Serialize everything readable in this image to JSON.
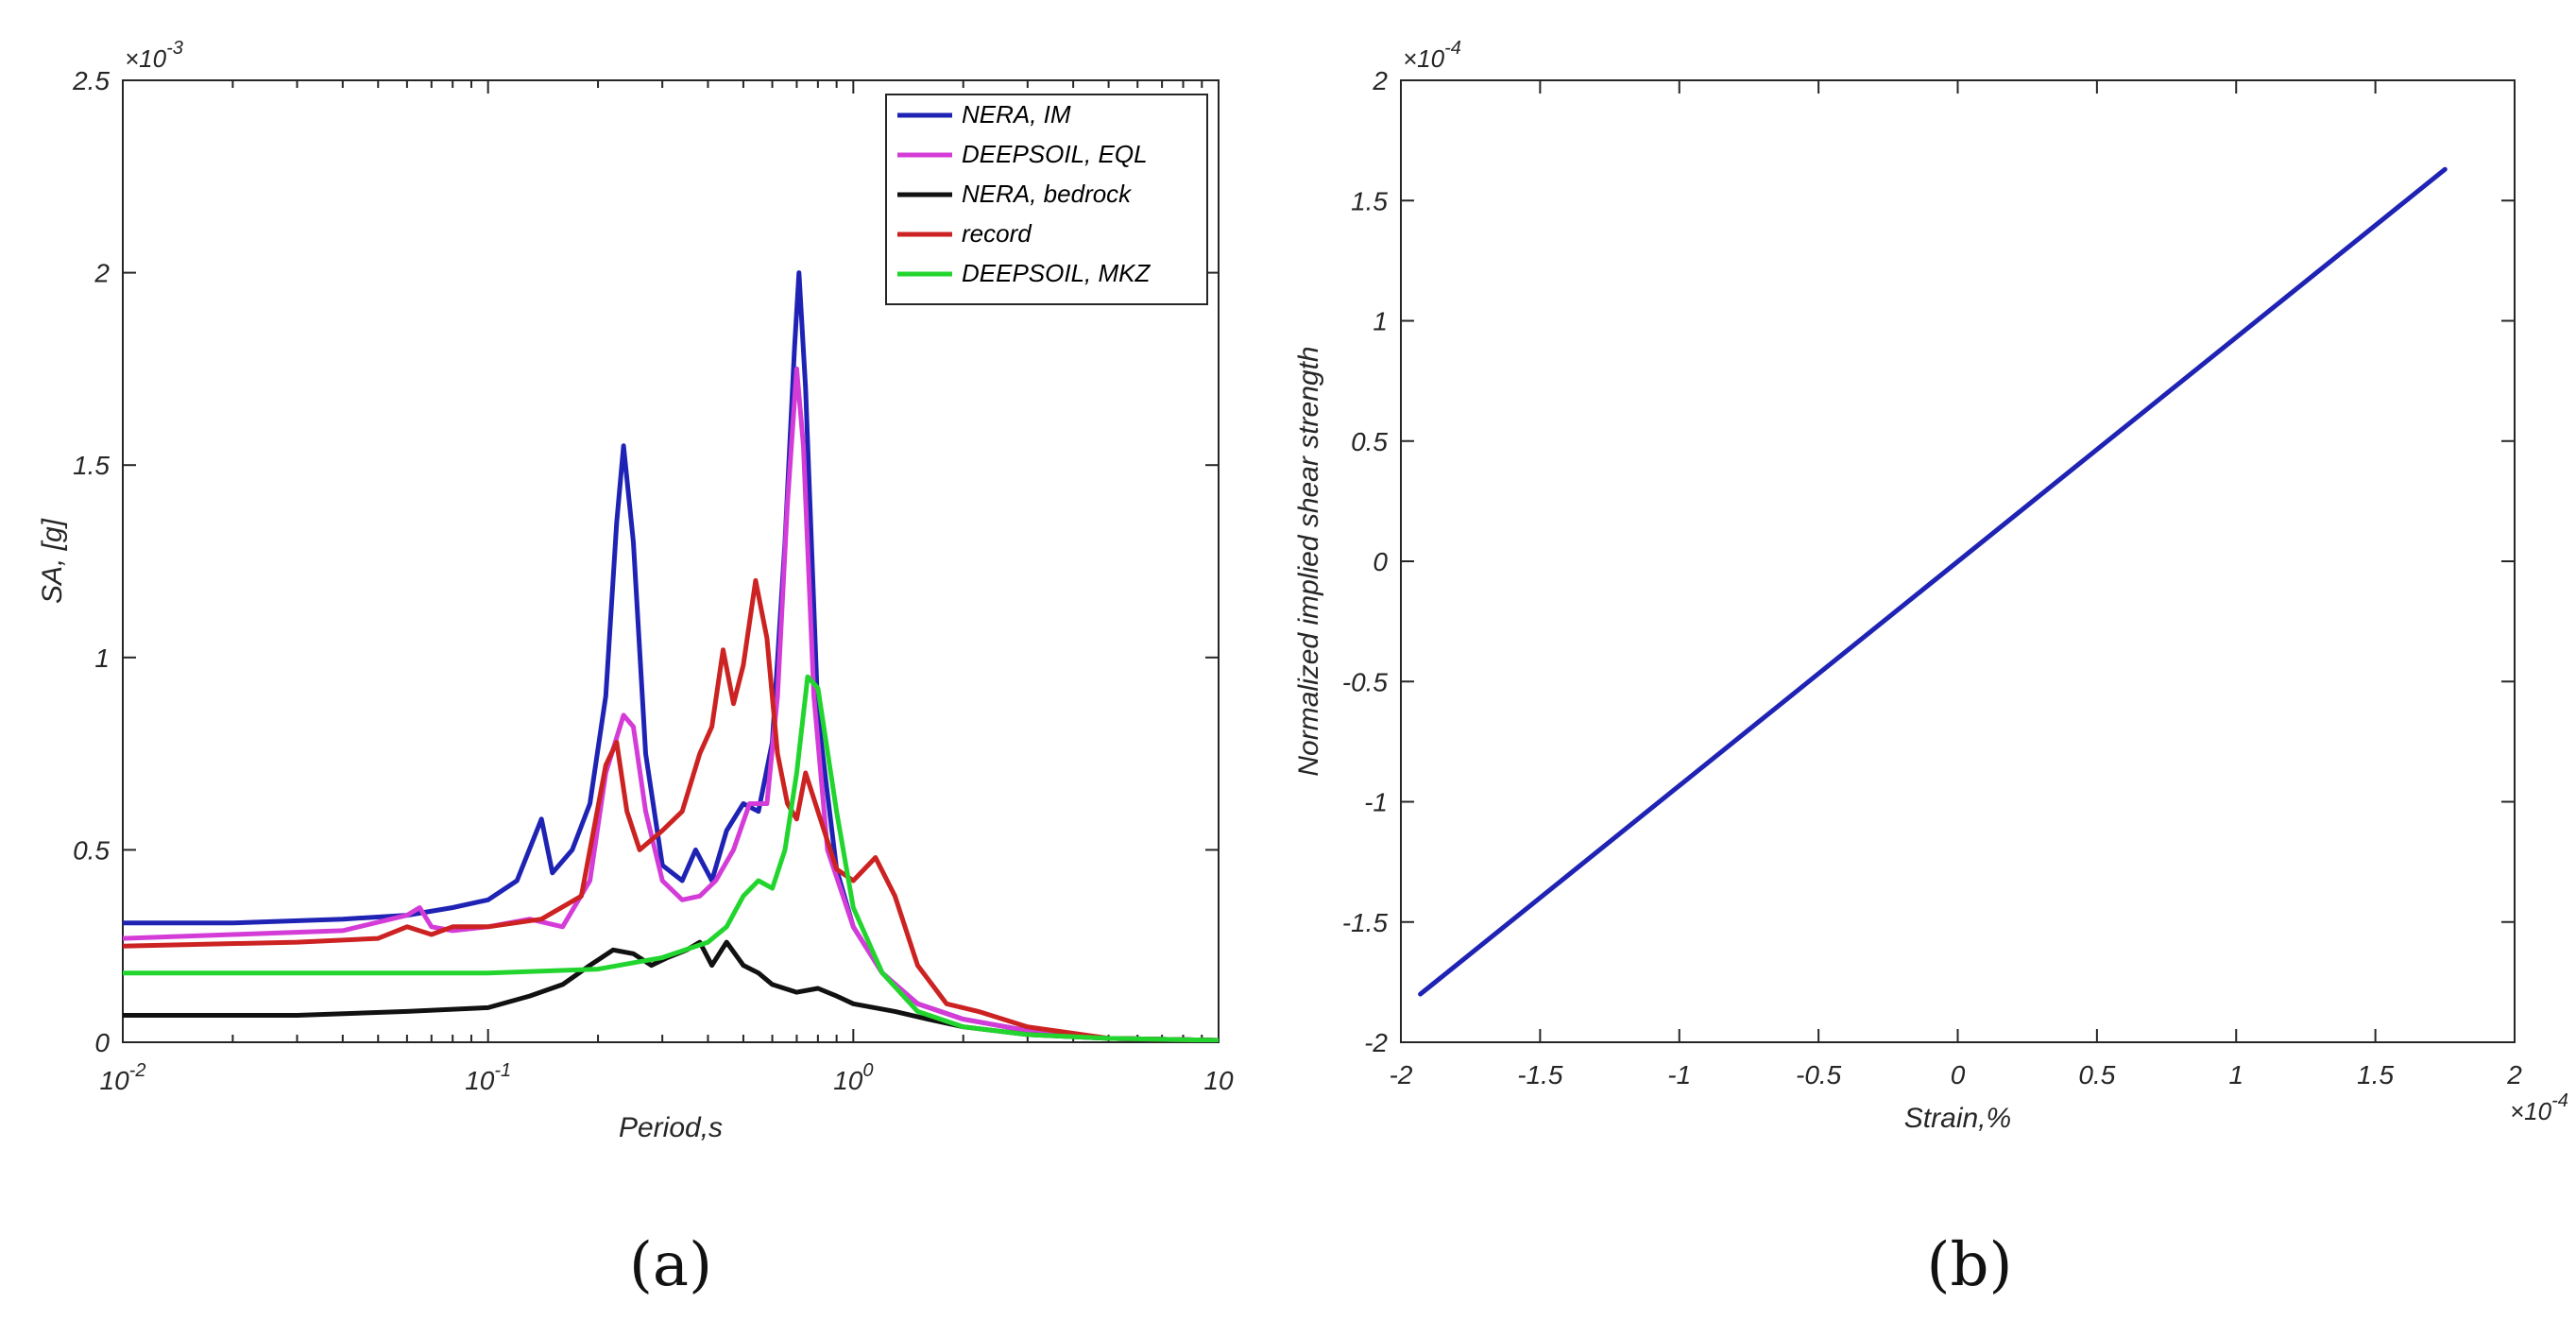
{
  "chart_data": [
    {
      "panel": "(a)",
      "type": "line",
      "xscale": "log",
      "xlabel": "Period,s",
      "ylabel": "SA, [g]",
      "y_multiplier": "×10",
      "y_multiplier_exp": "-3",
      "xlim": [
        0.01,
        10
      ],
      "ylim": [
        0,
        2.5
      ],
      "x_ticks": [
        {
          "value": 0.01,
          "base": "10",
          "exp": "-2"
        },
        {
          "value": 0.1,
          "base": "10",
          "exp": "-1"
        },
        {
          "value": 1,
          "base": "10",
          "exp": "0"
        },
        {
          "value": 10,
          "base": "10",
          "exp": ""
        }
      ],
      "y_ticks": [
        {
          "value": 0,
          "label": "0"
        },
        {
          "value": 0.5,
          "label": "0.5"
        },
        {
          "value": 1,
          "label": "1"
        },
        {
          "value": 1.5,
          "label": "1.5"
        },
        {
          "value": 2,
          "label": "2"
        },
        {
          "value": 2.5,
          "label": "2.5"
        }
      ],
      "legend_position": "top-right",
      "series": [
        {
          "name": "NERA, IM",
          "color": "#1f23b4",
          "points": [
            [
              0.01,
              0.31
            ],
            [
              0.02,
              0.31
            ],
            [
              0.04,
              0.32
            ],
            [
              0.06,
              0.33
            ],
            [
              0.08,
              0.35
            ],
            [
              0.1,
              0.37
            ],
            [
              0.12,
              0.42
            ],
            [
              0.14,
              0.58
            ],
            [
              0.15,
              0.44
            ],
            [
              0.17,
              0.5
            ],
            [
              0.19,
              0.62
            ],
            [
              0.21,
              0.9
            ],
            [
              0.225,
              1.35
            ],
            [
              0.235,
              1.55
            ],
            [
              0.25,
              1.3
            ],
            [
              0.27,
              0.75
            ],
            [
              0.3,
              0.46
            ],
            [
              0.34,
              0.42
            ],
            [
              0.37,
              0.5
            ],
            [
              0.41,
              0.42
            ],
            [
              0.45,
              0.55
            ],
            [
              0.5,
              0.62
            ],
            [
              0.55,
              0.6
            ],
            [
              0.6,
              0.78
            ],
            [
              0.65,
              1.3
            ],
            [
              0.69,
              1.8
            ],
            [
              0.71,
              2.0
            ],
            [
              0.74,
              1.7
            ],
            [
              0.8,
              0.85
            ],
            [
              0.9,
              0.45
            ],
            [
              1.0,
              0.3
            ],
            [
              1.2,
              0.18
            ],
            [
              1.5,
              0.1
            ],
            [
              2.0,
              0.06
            ],
            [
              3.0,
              0.03
            ],
            [
              5.0,
              0.01
            ],
            [
              10,
              0.005
            ]
          ]
        },
        {
          "name": "DEEPSOIL, EQL",
          "color": "#d43cd8",
          "points": [
            [
              0.01,
              0.27
            ],
            [
              0.02,
              0.28
            ],
            [
              0.04,
              0.29
            ],
            [
              0.06,
              0.33
            ],
            [
              0.065,
              0.35
            ],
            [
              0.07,
              0.3
            ],
            [
              0.08,
              0.29
            ],
            [
              0.1,
              0.3
            ],
            [
              0.13,
              0.32
            ],
            [
              0.16,
              0.3
            ],
            [
              0.19,
              0.42
            ],
            [
              0.21,
              0.7
            ],
            [
              0.235,
              0.85
            ],
            [
              0.25,
              0.82
            ],
            [
              0.27,
              0.6
            ],
            [
              0.3,
              0.42
            ],
            [
              0.34,
              0.37
            ],
            [
              0.38,
              0.38
            ],
            [
              0.42,
              0.42
            ],
            [
              0.47,
              0.5
            ],
            [
              0.52,
              0.62
            ],
            [
              0.58,
              0.62
            ],
            [
              0.62,
              0.9
            ],
            [
              0.66,
              1.4
            ],
            [
              0.7,
              1.75
            ],
            [
              0.73,
              1.55
            ],
            [
              0.78,
              0.9
            ],
            [
              0.85,
              0.5
            ],
            [
              1.0,
              0.3
            ],
            [
              1.2,
              0.18
            ],
            [
              1.5,
              0.1
            ],
            [
              2.0,
              0.06
            ],
            [
              3.0,
              0.03
            ],
            [
              5.0,
              0.01
            ],
            [
              10,
              0.005
            ]
          ]
        },
        {
          "name": "NERA, bedrock",
          "color": "#111111",
          "points": [
            [
              0.01,
              0.07
            ],
            [
              0.03,
              0.07
            ],
            [
              0.06,
              0.08
            ],
            [
              0.1,
              0.09
            ],
            [
              0.13,
              0.12
            ],
            [
              0.16,
              0.15
            ],
            [
              0.19,
              0.2
            ],
            [
              0.22,
              0.24
            ],
            [
              0.25,
              0.23
            ],
            [
              0.28,
              0.2
            ],
            [
              0.31,
              0.22
            ],
            [
              0.35,
              0.24
            ],
            [
              0.38,
              0.26
            ],
            [
              0.41,
              0.2
            ],
            [
              0.45,
              0.26
            ],
            [
              0.5,
              0.2
            ],
            [
              0.55,
              0.18
            ],
            [
              0.6,
              0.15
            ],
            [
              0.7,
              0.13
            ],
            [
              0.8,
              0.14
            ],
            [
              0.9,
              0.12
            ],
            [
              1.0,
              0.1
            ],
            [
              1.3,
              0.08
            ],
            [
              1.6,
              0.06
            ],
            [
              2.0,
              0.04
            ],
            [
              3.0,
              0.02
            ],
            [
              5.0,
              0.01
            ],
            [
              10,
              0.005
            ]
          ]
        },
        {
          "name": "record",
          "color": "#cc2222",
          "points": [
            [
              0.01,
              0.25
            ],
            [
              0.03,
              0.26
            ],
            [
              0.05,
              0.27
            ],
            [
              0.06,
              0.3
            ],
            [
              0.07,
              0.28
            ],
            [
              0.08,
              0.3
            ],
            [
              0.1,
              0.3
            ],
            [
              0.14,
              0.32
            ],
            [
              0.18,
              0.38
            ],
            [
              0.21,
              0.72
            ],
            [
              0.225,
              0.78
            ],
            [
              0.24,
              0.6
            ],
            [
              0.26,
              0.5
            ],
            [
              0.3,
              0.55
            ],
            [
              0.34,
              0.6
            ],
            [
              0.38,
              0.75
            ],
            [
              0.41,
              0.82
            ],
            [
              0.44,
              1.02
            ],
            [
              0.47,
              0.88
            ],
            [
              0.5,
              0.98
            ],
            [
              0.54,
              1.2
            ],
            [
              0.58,
              1.05
            ],
            [
              0.62,
              0.75
            ],
            [
              0.66,
              0.62
            ],
            [
              0.7,
              0.58
            ],
            [
              0.74,
              0.7
            ],
            [
              0.8,
              0.6
            ],
            [
              0.9,
              0.45
            ],
            [
              1.0,
              0.42
            ],
            [
              1.15,
              0.48
            ],
            [
              1.3,
              0.38
            ],
            [
              1.5,
              0.2
            ],
            [
              1.8,
              0.1
            ],
            [
              2.2,
              0.08
            ],
            [
              3.0,
              0.04
            ],
            [
              5.0,
              0.01
            ],
            [
              10,
              0.005
            ]
          ]
        },
        {
          "name": "DEEPSOIL, MKZ",
          "color": "#22d52e",
          "points": [
            [
              0.01,
              0.18
            ],
            [
              0.05,
              0.18
            ],
            [
              0.1,
              0.18
            ],
            [
              0.2,
              0.19
            ],
            [
              0.3,
              0.22
            ],
            [
              0.4,
              0.26
            ],
            [
              0.45,
              0.3
            ],
            [
              0.5,
              0.38
            ],
            [
              0.55,
              0.42
            ],
            [
              0.6,
              0.4
            ],
            [
              0.65,
              0.5
            ],
            [
              0.7,
              0.7
            ],
            [
              0.75,
              0.95
            ],
            [
              0.8,
              0.92
            ],
            [
              0.9,
              0.6
            ],
            [
              1.0,
              0.35
            ],
            [
              1.2,
              0.18
            ],
            [
              1.5,
              0.08
            ],
            [
              2.0,
              0.04
            ],
            [
              3.0,
              0.02
            ],
            [
              5.0,
              0.01
            ],
            [
              10,
              0.005
            ]
          ]
        }
      ]
    },
    {
      "panel": "(b)",
      "type": "line",
      "xscale": "linear",
      "xlabel": "Strain,%",
      "ylabel": "Normalized implied shear strength",
      "x_multiplier": "×10",
      "x_multiplier_exp": "-4",
      "y_multiplier": "×10",
      "y_multiplier_exp": "-4",
      "xlim": [
        -2,
        2
      ],
      "ylim": [
        -2,
        2
      ],
      "x_ticks": [
        {
          "value": -2,
          "label": "-2"
        },
        {
          "value": -1.5,
          "label": "-1.5"
        },
        {
          "value": -1,
          "label": "-1"
        },
        {
          "value": -0.5,
          "label": "-0.5"
        },
        {
          "value": 0,
          "label": "0"
        },
        {
          "value": 0.5,
          "label": "0.5"
        },
        {
          "value": 1,
          "label": "1"
        },
        {
          "value": 1.5,
          "label": "1.5"
        },
        {
          "value": 2,
          "label": "2"
        }
      ],
      "y_ticks": [
        {
          "value": -2,
          "label": "-2"
        },
        {
          "value": -1.5,
          "label": "-1.5"
        },
        {
          "value": -1,
          "label": "-1"
        },
        {
          "value": -0.5,
          "label": "-0.5"
        },
        {
          "value": 0,
          "label": "0"
        },
        {
          "value": 0.5,
          "label": "0.5"
        },
        {
          "value": 1,
          "label": "1"
        },
        {
          "value": 1.5,
          "label": "1.5"
        },
        {
          "value": 2,
          "label": "2"
        }
      ],
      "series": [
        {
          "name": "line",
          "color": "#1f23b4",
          "points": [
            [
              -1.93,
              -1.8
            ],
            [
              1.75,
              1.63
            ]
          ]
        }
      ]
    }
  ]
}
